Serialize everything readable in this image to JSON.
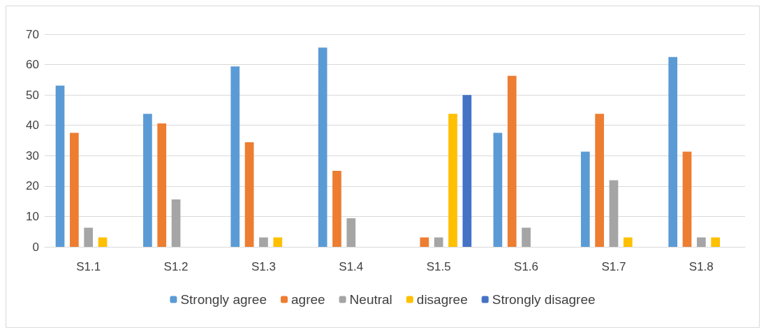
{
  "chart_data": {
    "type": "bar",
    "categories": [
      "S1.1",
      "S1.2",
      "S1.3",
      "S1.4",
      "S1.5",
      "S1.6",
      "S1.7",
      "S1.8"
    ],
    "series": [
      {
        "name": "Strongly agree",
        "color": "#5b9bd5",
        "values": [
          53.1,
          43.8,
          59.4,
          65.6,
          0,
          37.5,
          31.3,
          62.5
        ]
      },
      {
        "name": "agree",
        "color": "#ed7d31",
        "values": [
          37.5,
          40.6,
          34.4,
          25,
          3.1,
          56.3,
          43.8,
          31.3
        ]
      },
      {
        "name": "Neutral",
        "color": "#a5a5a5",
        "values": [
          6.3,
          15.6,
          3.1,
          9.4,
          3.1,
          6.3,
          21.9,
          3.1
        ]
      },
      {
        "name": "disagree",
        "color": "#ffc000",
        "values": [
          3.1,
          0,
          3.1,
          0,
          43.8,
          0,
          3.1,
          3.1
        ]
      },
      {
        "name": "Strongly disagree",
        "color": "#4472c4",
        "values": [
          0,
          0,
          0,
          0,
          50,
          0,
          0,
          0
        ]
      }
    ],
    "ylim": [
      0,
      70
    ],
    "yticks": [
      0,
      10,
      20,
      30,
      40,
      50,
      60,
      70
    ],
    "grid": "y",
    "legend": "bottom"
  }
}
